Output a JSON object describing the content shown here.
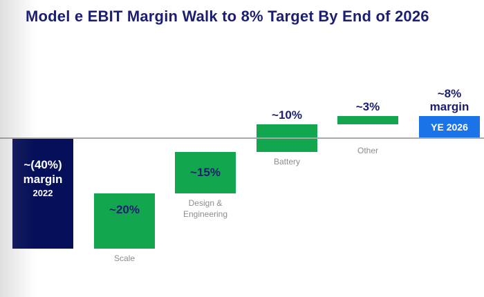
{
  "title": "Model e EBIT Margin Walk to 8% Target By End of 2026",
  "colors": {
    "title_navy": "#1b1e72",
    "bar_navy": "#050f5a",
    "bar_green": "#12a74e",
    "bar_blue": "#1b73e8",
    "category_gray": "#8c8c8c",
    "baseline_gray": "#a9a9a9"
  },
  "chart_data": {
    "type": "bar",
    "subtype": "waterfall",
    "title": "Model e EBIT Margin Walk to 8% Target By End of 2026",
    "unit": "EBIT margin %",
    "baseline_value": 0,
    "ylim": [
      -44,
      12
    ],
    "grid": false,
    "legend": false,
    "bars": [
      {
        "name": "2022",
        "from": 0,
        "to": -40,
        "color_role": "navy",
        "value_label": "~(40%)",
        "value_label2": "margin",
        "value_label3": "2022",
        "label_pos": "inside",
        "below_label": ""
      },
      {
        "name": "Scale",
        "delta": 20,
        "color_role": "green",
        "value_label": "~20%",
        "label_pos": "inside",
        "nudge_up": true,
        "below_label": "Scale"
      },
      {
        "name": "Design & Engineering",
        "delta": 15,
        "color_role": "green",
        "value_label": "~15%",
        "label_pos": "inside",
        "below_label": "Design &\nEngineering"
      },
      {
        "name": "Battery",
        "delta": 10,
        "color_role": "green",
        "value_label": "~10%",
        "label_pos": "above",
        "below_label": "Battery"
      },
      {
        "name": "Other",
        "delta": 3,
        "color_role": "green",
        "value_label": "~3%",
        "label_pos": "above",
        "below_label": "Other"
      },
      {
        "name": "YE 2026",
        "from": 0,
        "to": 8,
        "color_role": "blue",
        "value_label": "~8%",
        "value_label2": "margin",
        "label_pos": "above",
        "inside_label": "YE 2026",
        "below_label": ""
      }
    ]
  }
}
